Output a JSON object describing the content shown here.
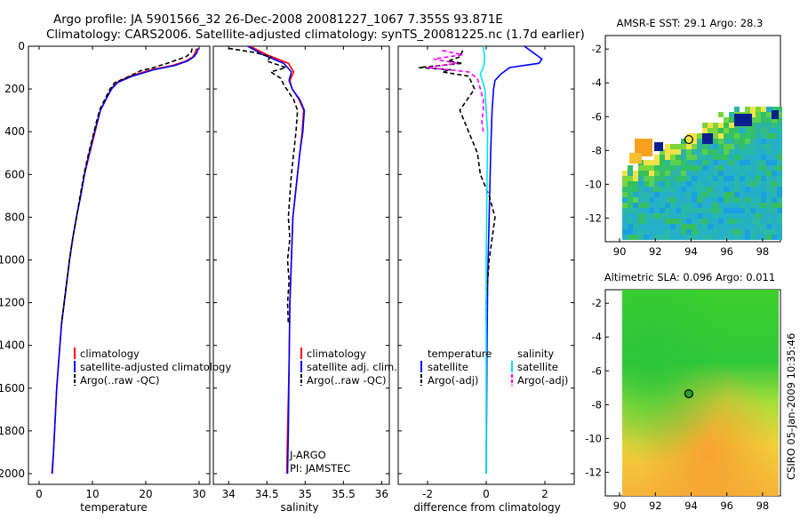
{
  "header": {
    "line1": "Argo profile: JA 5901566_32 26-Dec-2008 20081227_1067 7.355S 93.871E",
    "line2": "Climatology: CARS2006. Satellite-adjusted climatology: synTS_20081225.nc (1.7d earlier)"
  },
  "footer": {
    "credit": "CSIRO 05-Jan-2009 10:35:46"
  },
  "colors": {
    "climatology": "#ff0000",
    "satellite": "#0000ff",
    "argo": "#000000",
    "salinity_satellite": "#00e5ee",
    "salinity_argo": "#ff00ff"
  },
  "chart_data": [
    {
      "type": "line",
      "name": "temperature-panel",
      "xlabel": "temperature",
      "xlim": [
        -2,
        32
      ],
      "ylim": [
        2050,
        0
      ],
      "xticks": [
        0,
        10,
        20,
        30
      ],
      "yticks": [
        0,
        200,
        400,
        600,
        800,
        1000,
        1200,
        1400,
        1600,
        1800,
        2000
      ],
      "legend": [
        "climatology",
        "satellite-adjusted climatology",
        "Argo(..raw -QC)"
      ],
      "series": [
        {
          "name": "climatology",
          "color": "#ff0000",
          "points": [
            [
              29.5,
              10
            ],
            [
              29.3,
              30
            ],
            [
              28.8,
              50
            ],
            [
              27.5,
              70
            ],
            [
              25,
              90
            ],
            [
              21,
              110
            ],
            [
              17,
              140
            ],
            [
              14.5,
              170
            ],
            [
              13.5,
              200
            ],
            [
              12.5,
              250
            ],
            [
              11.5,
              300
            ],
            [
              10.5,
              400
            ],
            [
              9.5,
              500
            ],
            [
              8.5,
              600
            ],
            [
              7.8,
              700
            ],
            [
              7.0,
              800
            ],
            [
              6.3,
              900
            ],
            [
              5.7,
              1000
            ],
            [
              5.2,
              1100
            ],
            [
              4.7,
              1200
            ],
            [
              4.2,
              1300
            ],
            [
              3.9,
              1400
            ],
            [
              3.6,
              1500
            ],
            [
              3.3,
              1600
            ],
            [
              3.1,
              1700
            ],
            [
              2.9,
              1800
            ],
            [
              2.7,
              1900
            ],
            [
              2.5,
              2000
            ]
          ]
        },
        {
          "name": "satellite",
          "color": "#0000ff",
          "points": [
            [
              29.8,
              10
            ],
            [
              29.6,
              30
            ],
            [
              29.0,
              50
            ],
            [
              27.8,
              70
            ],
            [
              25.5,
              90
            ],
            [
              21.5,
              110
            ],
            [
              17.5,
              140
            ],
            [
              14.7,
              170
            ],
            [
              13.6,
              200
            ],
            [
              12.5,
              250
            ],
            [
              11.5,
              300
            ],
            [
              10.4,
              400
            ],
            [
              9.4,
              500
            ],
            [
              8.5,
              600
            ],
            [
              7.8,
              700
            ],
            [
              7.0,
              800
            ],
            [
              6.3,
              900
            ],
            [
              5.7,
              1000
            ],
            [
              5.2,
              1100
            ],
            [
              4.7,
              1200
            ],
            [
              4.2,
              1300
            ],
            [
              3.9,
              1400
            ],
            [
              3.6,
              1500
            ],
            [
              3.3,
              1600
            ],
            [
              3.1,
              1700
            ],
            [
              2.9,
              1800
            ],
            [
              2.7,
              1900
            ],
            [
              2.4,
              2000
            ]
          ]
        },
        {
          "name": "argo",
          "color": "#000000",
          "dashed": true,
          "points": [
            [
              28.7,
              10
            ],
            [
              28.5,
              30
            ],
            [
              27.5,
              50
            ],
            [
              24,
              80
            ],
            [
              21.5,
              100
            ],
            [
              19,
              115
            ],
            [
              17,
              140
            ],
            [
              14.2,
              170
            ],
            [
              13.3,
              200
            ],
            [
              12.3,
              250
            ],
            [
              11.3,
              300
            ],
            [
              10.3,
              400
            ],
            [
              9.3,
              500
            ],
            [
              8.4,
              600
            ],
            [
              7.7,
              700
            ],
            [
              7.0,
              800
            ],
            [
              6.3,
              900
            ],
            [
              5.7,
              1000
            ],
            [
              5.2,
              1100
            ],
            [
              4.7,
              1200
            ],
            [
              4.2,
              1300
            ]
          ]
        }
      ]
    },
    {
      "type": "line",
      "name": "salinity-panel",
      "xlabel": "salinity",
      "xlim": [
        33.8,
        36.1
      ],
      "ylim": [
        2050,
        0
      ],
      "xticks": [
        34,
        34.5,
        35,
        35.5,
        36
      ],
      "legend": [
        "climatology",
        "satellite adj. clim.",
        "Argo(..raw -QC)"
      ],
      "annotations": [
        "J-ARGO",
        "PI: JAMSTEC"
      ],
      "series": [
        {
          "name": "climatology",
          "color": "#ff0000",
          "points": [
            [
              34.28,
              0
            ],
            [
              34.5,
              40
            ],
            [
              34.78,
              80
            ],
            [
              34.85,
              120
            ],
            [
              34.8,
              160
            ],
            [
              34.83,
              200
            ],
            [
              34.92,
              250
            ],
            [
              34.98,
              300
            ],
            [
              34.96,
              400
            ],
            [
              34.93,
              500
            ],
            [
              34.9,
              600
            ],
            [
              34.87,
              700
            ],
            [
              34.84,
              800
            ],
            [
              34.82,
              1000
            ],
            [
              34.8,
              1200
            ],
            [
              34.79,
              1500
            ],
            [
              34.77,
              1800
            ],
            [
              34.76,
              2000
            ]
          ]
        },
        {
          "name": "satellite",
          "color": "#0000ff",
          "points": [
            [
              34.25,
              0
            ],
            [
              34.45,
              40
            ],
            [
              34.72,
              80
            ],
            [
              34.82,
              120
            ],
            [
              34.79,
              160
            ],
            [
              34.83,
              200
            ],
            [
              34.93,
              250
            ],
            [
              34.99,
              300
            ],
            [
              34.97,
              400
            ],
            [
              34.93,
              500
            ],
            [
              34.9,
              600
            ],
            [
              34.87,
              700
            ],
            [
              34.84,
              800
            ],
            [
              34.82,
              1000
            ],
            [
              34.8,
              1200
            ],
            [
              34.79,
              1500
            ],
            [
              34.78,
              1800
            ],
            [
              34.77,
              2000
            ]
          ]
        },
        {
          "name": "argo",
          "color": "#000000",
          "dashed": true,
          "points": [
            [
              34.0,
              10
            ],
            [
              34.35,
              30
            ],
            [
              34.55,
              50
            ],
            [
              34.5,
              70
            ],
            [
              34.75,
              100
            ],
            [
              34.55,
              120
            ],
            [
              34.68,
              150
            ],
            [
              34.72,
              180
            ],
            [
              34.85,
              250
            ],
            [
              34.9,
              300
            ],
            [
              34.88,
              400
            ],
            [
              34.85,
              500
            ],
            [
              34.82,
              600
            ],
            [
              34.8,
              700
            ],
            [
              34.78,
              800
            ],
            [
              34.8,
              900
            ],
            [
              34.77,
              1000
            ],
            [
              34.79,
              1100
            ],
            [
              34.77,
              1200
            ],
            [
              34.78,
              1300
            ]
          ]
        }
      ]
    },
    {
      "type": "line",
      "name": "difference-panel",
      "xlabel": "difference from climatology",
      "xlim": [
        -3,
        3
      ],
      "ylim": [
        2050,
        0
      ],
      "xticks": [
        -2,
        0,
        2
      ],
      "legend_left": {
        "title": "temperature",
        "items": [
          "satellite",
          "Argo(-adj)"
        ]
      },
      "legend_right": {
        "title": "salinity",
        "items": [
          "satellite",
          "Argo(-adj)"
        ]
      },
      "series": [
        {
          "name": "temperature-satellite",
          "color": "#0000ff",
          "points": [
            [
              1.3,
              0
            ],
            [
              1.6,
              30
            ],
            [
              1.9,
              60
            ],
            [
              1.8,
              80
            ],
            [
              0.8,
              100
            ],
            [
              0.5,
              130
            ],
            [
              0.3,
              160
            ],
            [
              0.25,
              200
            ],
            [
              0.2,
              300
            ],
            [
              0.15,
              500
            ],
            [
              0.1,
              800
            ],
            [
              0.05,
              1100
            ],
            [
              0.02,
              1500
            ],
            [
              0,
              2000
            ]
          ]
        },
        {
          "name": "temperature-argo",
          "color": "#000000",
          "dashed": true,
          "points": [
            [
              -0.8,
              20
            ],
            [
              -0.9,
              50
            ],
            [
              -1.3,
              70
            ],
            [
              -0.8,
              80
            ],
            [
              -2.3,
              100
            ],
            [
              -1.2,
              110
            ],
            [
              -1.5,
              120
            ],
            [
              -0.6,
              140
            ],
            [
              -0.4,
              200
            ],
            [
              -0.9,
              300
            ],
            [
              -0.6,
              400
            ],
            [
              -0.3,
              500
            ],
            [
              -0.2,
              600
            ],
            [
              0.1,
              700
            ],
            [
              0.3,
              800
            ],
            [
              0.2,
              900
            ],
            [
              0.1,
              1000
            ],
            [
              0.05,
              1100
            ],
            [
              0,
              1200
            ],
            [
              0,
              1300
            ]
          ]
        },
        {
          "name": "salinity-satellite",
          "color": "#00e5ee",
          "points": [
            [
              -0.1,
              0
            ],
            [
              -0.05,
              60
            ],
            [
              -0.1,
              100
            ],
            [
              -0.2,
              130
            ],
            [
              -0.05,
              200
            ],
            [
              0.05,
              400
            ],
            [
              0.02,
              700
            ],
            [
              0,
              1000
            ],
            [
              0,
              1500
            ],
            [
              0,
              2000
            ]
          ]
        },
        {
          "name": "salinity-argo",
          "color": "#ff00ff",
          "dashed": true,
          "points": [
            [
              -1.5,
              20
            ],
            [
              -0.8,
              40
            ],
            [
              -1.8,
              60
            ],
            [
              -1.0,
              80
            ],
            [
              -2.0,
              100
            ],
            [
              -0.6,
              120
            ],
            [
              -0.3,
              150
            ],
            [
              -0.1,
              250
            ],
            [
              -0.1,
              300
            ],
            [
              -0.15,
              350
            ],
            [
              -0.1,
              400
            ]
          ]
        }
      ]
    },
    {
      "type": "heatmap",
      "name": "sst-map",
      "title": "AMSR-E SST: 29.1 Argo: 28.3",
      "xticks": [
        90,
        92,
        94,
        96,
        98
      ],
      "yticks": [
        -2,
        -4,
        -6,
        -8,
        -10,
        -12
      ],
      "xlim": [
        89.2,
        99
      ],
      "ylim": [
        -13.4,
        -1.2
      ],
      "argo_position": [
        93.871,
        -7.355
      ]
    },
    {
      "type": "heatmap",
      "name": "sla-map",
      "title": "Altimetric SLA: 0.096 Argo: 0.011",
      "xticks": [
        90,
        92,
        94,
        96,
        98
      ],
      "yticks": [
        -2,
        -4,
        -6,
        -8,
        -10,
        -12
      ],
      "xlim": [
        89.2,
        99
      ],
      "ylim": [
        -13.4,
        -1.2
      ],
      "argo_position": [
        93.871,
        -7.355
      ]
    }
  ]
}
